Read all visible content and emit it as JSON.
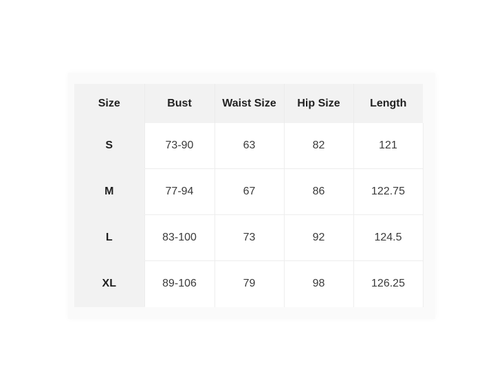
{
  "table": {
    "headers": [
      "Size",
      "Bust",
      "Waist Size",
      "Hip Size",
      "Length"
    ],
    "rows": [
      [
        "S",
        "73-90",
        "63",
        "82",
        "121"
      ],
      [
        "M",
        "77-94",
        "67",
        "86",
        "122.75"
      ],
      [
        "L",
        "83-100",
        "73",
        "92",
        "124.5"
      ],
      [
        "XL",
        "89-106",
        "79",
        "98",
        "126.25"
      ]
    ]
  }
}
